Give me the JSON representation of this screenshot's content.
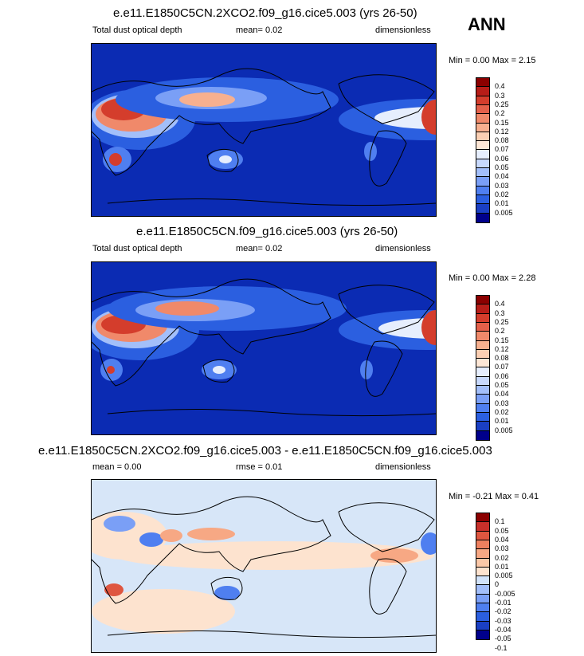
{
  "season": "ANN",
  "colors": {
    "ratio_scale": [
      "#00008b",
      "#1a3fc4",
      "#2b5fe0",
      "#4f7ff0",
      "#7a9ff6",
      "#a3bffa",
      "#c8d9fc",
      "#e6eefd",
      "#fde7d6",
      "#fbcfb3",
      "#f7b08f",
      "#f0896a",
      "#e4604a",
      "#d43d2c",
      "#b71d18",
      "#8b0000"
    ],
    "diff_scale": [
      "#00008b",
      "#1a3fc4",
      "#2b5fe0",
      "#4f7ff0",
      "#7a9ff6",
      "#a3bffa",
      "#d2e3fa",
      "#fde3cf",
      "#fbc8a8",
      "#f7a884",
      "#ee805f",
      "#df5640",
      "#c8302a",
      "#8b0000"
    ],
    "ocean_ratio": "#0b2bb3",
    "ocean_diff": "#d7e6f8"
  },
  "panels": [
    {
      "title": "e.e11.E1850C5CN.2XCO2.f09_g16.cice5.003 (yrs 26-50)",
      "left": "Total dust optical depth",
      "mean": "mean=  0.02",
      "right": "dimensionless",
      "minmax": "Min =  0.00 Max =  2.15"
    },
    {
      "title": "e.e11.E1850C5CN.f09_g16.cice5.003 (yrs 26-50)",
      "left": "Total dust optical depth",
      "mean": "mean=  0.02",
      "right": "dimensionless",
      "minmax": "Min =  0.00 Max =  2.28"
    },
    {
      "title": "e.e11.E1850C5CN.2XCO2.f09_g16.cice5.003 - e.e11.E1850C5CN.f09_g16.cice5.003",
      "left": "mean =  0.00",
      "mean": "rmse =  0.01",
      "right": "dimensionless",
      "minmax": "Min = -0.21 Max =  0.41"
    }
  ],
  "colorbar_labels": [
    "0.4",
    "0.3",
    "0.25",
    "0.2",
    "0.15",
    "0.12",
    "0.08",
    "0.07",
    "0.06",
    "0.05",
    "0.04",
    "0.03",
    "0.02",
    "0.01",
    "0.005"
  ],
  "diff_colorbar_labels": [
    "0.1",
    "0.05",
    "0.04",
    "0.03",
    "0.02",
    "0.01",
    "0.005",
    "0",
    "-0.005",
    "-0.01",
    "-0.02",
    "-0.03",
    "-0.04",
    "-0.05",
    "-0.1"
  ],
  "chart_data": [
    {
      "type": "heatmap",
      "title": "e.e11.E1850C5CN.2XCO2.f09_g16.cice5.003 (yrs 26-50)",
      "variable": "Total dust optical depth",
      "units": "dimensionless",
      "mean": 0.02,
      "min": 0.0,
      "max": 2.15,
      "levels": [
        0.005,
        0.01,
        0.02,
        0.03,
        0.04,
        0.05,
        0.06,
        0.07,
        0.08,
        0.12,
        0.15,
        0.2,
        0.25,
        0.3,
        0.4
      ]
    },
    {
      "type": "heatmap",
      "title": "e.e11.E1850C5CN.f09_g16.cice5.003 (yrs 26-50)",
      "variable": "Total dust optical depth",
      "units": "dimensionless",
      "mean": 0.02,
      "min": 0.0,
      "max": 2.28,
      "levels": [
        0.005,
        0.01,
        0.02,
        0.03,
        0.04,
        0.05,
        0.06,
        0.07,
        0.08,
        0.12,
        0.15,
        0.2,
        0.25,
        0.3,
        0.4
      ]
    },
    {
      "type": "heatmap",
      "title": "e.e11.E1850C5CN.2XCO2.f09_g16.cice5.003 - e.e11.E1850C5CN.f09_g16.cice5.003",
      "units": "dimensionless",
      "mean": 0.0,
      "rmse": 0.01,
      "min": -0.21,
      "max": 0.41,
      "levels": [
        -0.1,
        -0.05,
        -0.04,
        -0.03,
        -0.02,
        -0.01,
        -0.005,
        0,
        0.005,
        0.01,
        0.02,
        0.03,
        0.04,
        0.05,
        0.1
      ]
    }
  ]
}
